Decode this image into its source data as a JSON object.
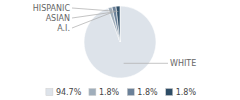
{
  "chart_data": {
    "type": "pie",
    "categories": [
      "WHITE",
      "A.I.",
      "ASIAN",
      "HISPANIC"
    ],
    "values": [
      94.7,
      1.8,
      1.8,
      1.8
    ],
    "value_labels": [
      "94.7%",
      "1.8%",
      "1.8%",
      "1.8%"
    ],
    "colors": [
      "#dde3ea",
      "#a0aebb",
      "#6b8199",
      "#2e4d66"
    ],
    "legend": "bottom"
  }
}
